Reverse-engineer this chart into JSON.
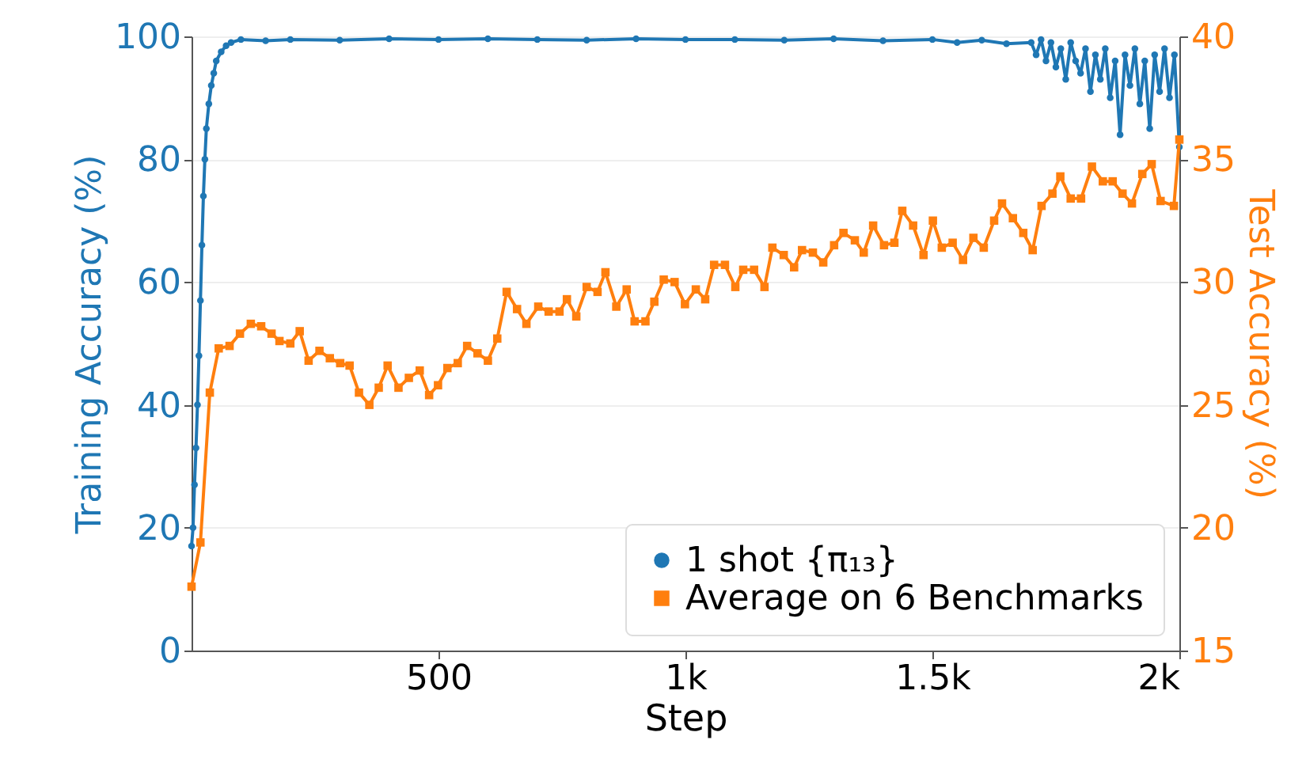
{
  "chart_data": {
    "type": "line",
    "xlabel": "Step",
    "ylabel": "Training Accuracy (%)",
    "y2label": "Test Accuracy (%)",
    "xlim": [
      0,
      2000
    ],
    "xticks": [
      {
        "value": 500,
        "label": "500"
      },
      {
        "value": 1000,
        "label": "1k"
      },
      {
        "value": 1500,
        "label": "1.5k"
      },
      {
        "value": 2000,
        "label": "2k"
      }
    ],
    "ylim": [
      0,
      100
    ],
    "yticks": [
      0,
      20,
      40,
      60,
      80,
      100
    ],
    "y2lim": [
      15,
      40
    ],
    "y2ticks": [
      15,
      20,
      25,
      30,
      35,
      40
    ],
    "grid": "y",
    "legend": "bottom right",
    "series": [
      {
        "name": "1 shot {π₁₃}",
        "color": "#1f77b4",
        "marker": "circle",
        "x": [
          0,
          3,
          6,
          9,
          12,
          15,
          18,
          21,
          24,
          27,
          30,
          35,
          40,
          45,
          50,
          60,
          70,
          80,
          100,
          150,
          200,
          300,
          400,
          500,
          600,
          700,
          800,
          900,
          1000,
          1100,
          1200,
          1300,
          1400,
          1500,
          1550,
          1600,
          1650,
          1700,
          1710,
          1720,
          1730,
          1740,
          1750,
          1760,
          1770,
          1780,
          1790,
          1800,
          1810,
          1820,
          1830,
          1840,
          1850,
          1860,
          1870,
          1880,
          1890,
          1900,
          1910,
          1920,
          1930,
          1940,
          1950,
          1960,
          1970,
          1980,
          1990,
          2000
        ],
        "values": [
          17,
          20,
          27,
          33,
          40,
          48,
          57,
          66,
          74,
          80,
          85,
          89,
          92,
          94,
          96,
          97.5,
          98.5,
          99,
          99.5,
          99.3,
          99.5,
          99.4,
          99.6,
          99.5,
          99.6,
          99.5,
          99.4,
          99.6,
          99.5,
          99.5,
          99.4,
          99.6,
          99.3,
          99.5,
          99,
          99.4,
          98.8,
          99,
          97,
          99.5,
          96,
          99,
          95,
          98,
          93,
          99,
          96,
          94,
          98,
          91,
          97,
          93,
          98,
          90,
          96,
          84,
          97,
          92,
          98,
          89,
          96,
          85,
          97,
          91,
          98,
          90,
          97,
          82
        ]
      },
      {
        "name": "Average on 6 Benchmarks",
        "color": "#ff7f0e",
        "marker": "square",
        "axis": "y2",
        "x": [
          0,
          18,
          37,
          55,
          77,
          98,
          120,
          141,
          162,
          178,
          200,
          219,
          237,
          259,
          280,
          301,
          320,
          339,
          360,
          379,
          397,
          419,
          440,
          462,
          481,
          499,
          518,
          539,
          558,
          579,
          600,
          619,
          638,
          659,
          678,
          702,
          723,
          745,
          760,
          779,
          800,
          822,
          838,
          860,
          881,
          897,
          919,
          937,
          956,
          978,
          999,
          1021,
          1040,
          1058,
          1080,
          1101,
          1117,
          1139,
          1160,
          1176,
          1199,
          1220,
          1236,
          1258,
          1279,
          1301,
          1320,
          1343,
          1361,
          1380,
          1402,
          1423,
          1439,
          1461,
          1482,
          1501,
          1519,
          1541,
          1562,
          1583,
          1604,
          1625,
          1641,
          1663,
          1684,
          1703,
          1721,
          1743,
          1759,
          1780,
          1801,
          1823,
          1845,
          1865,
          1885,
          1904,
          1925,
          1944,
          1962,
          1989,
          2000
        ],
        "values": [
          17.6,
          19.4,
          25.5,
          27.3,
          27.4,
          27.9,
          28.3,
          28.2,
          27.9,
          27.6,
          27.5,
          28.0,
          26.8,
          27.2,
          26.9,
          26.7,
          26.6,
          25.5,
          25.0,
          25.7,
          26.6,
          25.7,
          26.1,
          26.4,
          25.4,
          25.8,
          26.5,
          26.7,
          27.4,
          27.1,
          26.8,
          27.7,
          29.6,
          28.9,
          28.3,
          29.0,
          28.8,
          28.8,
          29.3,
          28.6,
          29.8,
          29.6,
          30.4,
          29.0,
          29.7,
          28.4,
          28.4,
          29.2,
          30.1,
          30.0,
          29.1,
          29.7,
          29.3,
          30.7,
          30.7,
          29.8,
          30.5,
          30.5,
          29.8,
          31.4,
          31.1,
          30.6,
          31.3,
          31.2,
          30.8,
          31.5,
          32.0,
          31.7,
          31.2,
          32.3,
          31.5,
          31.6,
          32.9,
          32.3,
          31.1,
          32.5,
          31.4,
          31.6,
          30.9,
          31.8,
          31.4,
          32.5,
          33.2,
          32.6,
          32.0,
          31.3,
          33.1,
          33.6,
          34.3,
          33.4,
          33.4,
          34.7,
          34.1,
          34.1,
          33.6,
          33.2,
          34.4,
          34.8,
          33.3,
          33.1,
          35.8
        ]
      }
    ]
  }
}
